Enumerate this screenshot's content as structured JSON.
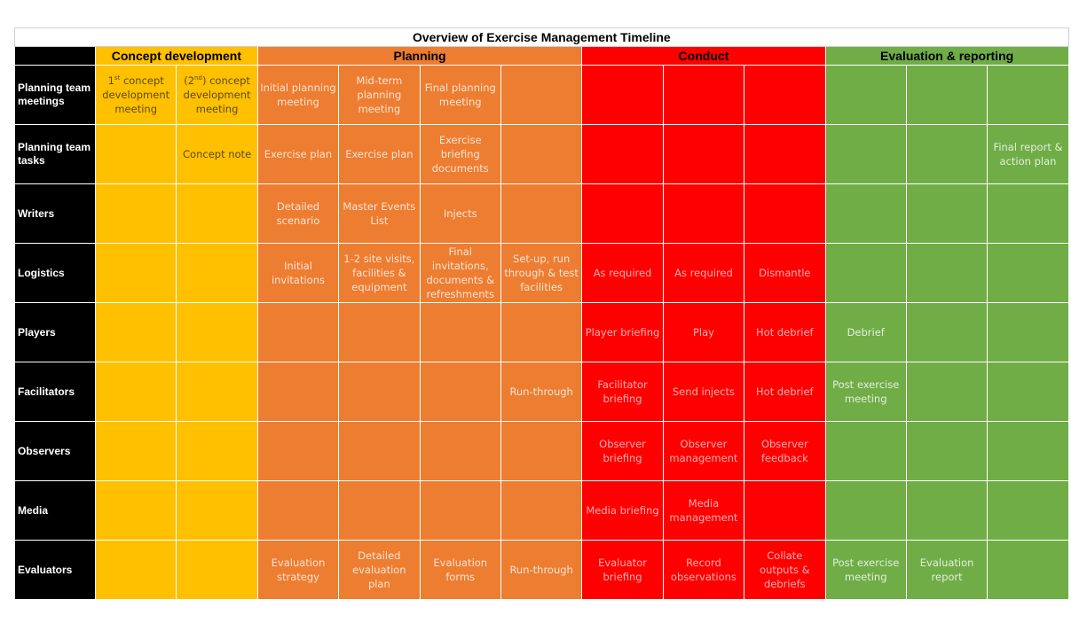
{
  "title": "Overview of Exercise Management Timeline",
  "phases": [
    {
      "label": "Concept development",
      "span": 2,
      "class": "concept"
    },
    {
      "label": "Planning",
      "span": 4,
      "class": "planning"
    },
    {
      "label": "Conduct",
      "span": 3,
      "class": "conduct"
    },
    {
      "label": "Evaluation & reporting",
      "span": 3,
      "class": "eval"
    }
  ],
  "column_phases": [
    "concept",
    "concept",
    "planning",
    "planning",
    "planning",
    "planning",
    "conduct",
    "conduct",
    "conduct",
    "eval",
    "eval",
    "eval"
  ],
  "rows": [
    {
      "label": "Planning team meetings",
      "cells": [
        "1st concept development meeting",
        "(2nd) concept development meeting",
        "Initial planning meeting",
        "Mid-term planning meeting",
        "Final planning meeting",
        "",
        "",
        "",
        "",
        "",
        "",
        ""
      ]
    },
    {
      "label": "Planning team tasks",
      "cells": [
        "",
        "Concept note",
        "Exercise plan",
        "Exercise plan",
        "Exercise briefing documents",
        "",
        "",
        "",
        "",
        "",
        "",
        "Final report & action plan"
      ]
    },
    {
      "label": "Writers",
      "cells": [
        "",
        "",
        "Detailed scenario",
        "Master Events List",
        "Injects",
        "",
        "",
        "",
        "",
        "",
        "",
        ""
      ]
    },
    {
      "label": "Logistics",
      "cells": [
        "",
        "",
        "Initial invitations",
        "1-2 site visits, facilities & equipment",
        "Final invitations, documents & refreshments",
        "Set-up, run through & test facilities",
        "As required",
        "As required",
        "Dismantle",
        "",
        "",
        ""
      ]
    },
    {
      "label": "Players",
      "cells": [
        "",
        "",
        "",
        "",
        "",
        "",
        "Player briefing",
        "Play",
        "Hot debrief",
        "Debrief",
        "",
        ""
      ]
    },
    {
      "label": "Facilitators",
      "cells": [
        "",
        "",
        "",
        "",
        "",
        "Run-through",
        "Facilitator briefing",
        "Send injects",
        "Hot debrief",
        "Post exercise meeting",
        "",
        ""
      ]
    },
    {
      "label": "Observers",
      "cells": [
        "",
        "",
        "",
        "",
        "",
        "",
        "Observer briefing",
        "Observer management",
        "Observer feedback",
        "",
        "",
        ""
      ]
    },
    {
      "label": "Media",
      "cells": [
        "",
        "",
        "",
        "",
        "",
        "",
        "Media briefing",
        "Media management",
        "",
        "",
        "",
        ""
      ]
    },
    {
      "label": "Evaluators",
      "cells": [
        "",
        "",
        "Evaluation strategy",
        "Detailed evaluation plan",
        "Evaluation forms",
        "Run-through",
        "Evaluator briefing",
        "Record observations",
        "Collate outputs & debriefs",
        "Post exercise meeting",
        "Evaluation report",
        ""
      ]
    }
  ],
  "colors": {
    "concept": "#ffc000",
    "planning": "#ed7d31",
    "conduct": "#ff0000",
    "eval": "#70ad47",
    "label_bg": "#000000"
  }
}
